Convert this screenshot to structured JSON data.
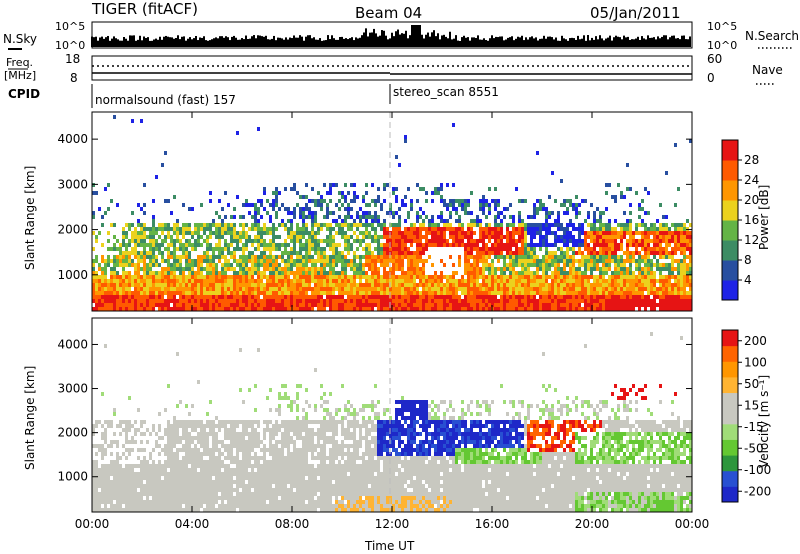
{
  "header": {
    "radar": "TIGER (fitACF)",
    "beam": "Beam 04",
    "date": "05/Jan/2011"
  },
  "top_panels": {
    "nsky_label": "N.Sky",
    "nsky_ticks": [
      "10^5",
      "10^0"
    ],
    "nsearch_label": "N.Search",
    "nsearch_ticks": [
      "10^5",
      "10^0"
    ],
    "freq_label": "Freq.",
    "freq_unit": "[MHz]",
    "freq_ticks": [
      "18",
      "8"
    ],
    "nave_label": "Nave",
    "nave_ticks": [
      "60",
      "0"
    ],
    "cpid_label": "CPID",
    "cpid_segments": [
      {
        "name": "normalsound (fast) 157",
        "start_hour": 0
      },
      {
        "name": "stereo_scan 8551",
        "start_hour": 12
      }
    ]
  },
  "chart_data": [
    {
      "type": "heatmap",
      "name": "power",
      "xlabel": "",
      "ylabel": "Slant Range [km]",
      "y_ticks": [
        "1000",
        "2000",
        "3000",
        "4000"
      ],
      "colorbar_label": "Power [dB]",
      "colorbar_ticks": [
        "4",
        "8",
        "12",
        "16",
        "20",
        "24",
        "28"
      ],
      "colors": [
        "#1e22e6",
        "#284fa0",
        "#3c8c64",
        "#64b446",
        "#ebd21e",
        "#ff9600",
        "#ff5a00",
        "#e61414"
      ],
      "ylim": [
        200,
        4600
      ]
    },
    {
      "type": "heatmap",
      "name": "velocity",
      "xlabel": "Time UT",
      "ylabel": "Slant Range [km]",
      "y_ticks": [
        "1000",
        "2000",
        "3000",
        "4000"
      ],
      "x_ticks": [
        "00:00",
        "04:00",
        "08:00",
        "12:00",
        "16:00",
        "20:00",
        "00:00"
      ],
      "colorbar_label": "Velocity [m s⁻¹]",
      "colorbar_ticks": [
        "200",
        "100",
        "50",
        "15",
        "-15",
        "-50",
        "-100",
        "-200"
      ],
      "colors": [
        "#1e28c8",
        "#2850d2",
        "#2d963c",
        "#64c832",
        "#a0dc78",
        "#c8c8c0",
        "#c8c8c0",
        "#ffb432",
        "#ff9600",
        "#ff6400",
        "#e61414"
      ],
      "ylim": [
        200,
        4600
      ]
    }
  ]
}
